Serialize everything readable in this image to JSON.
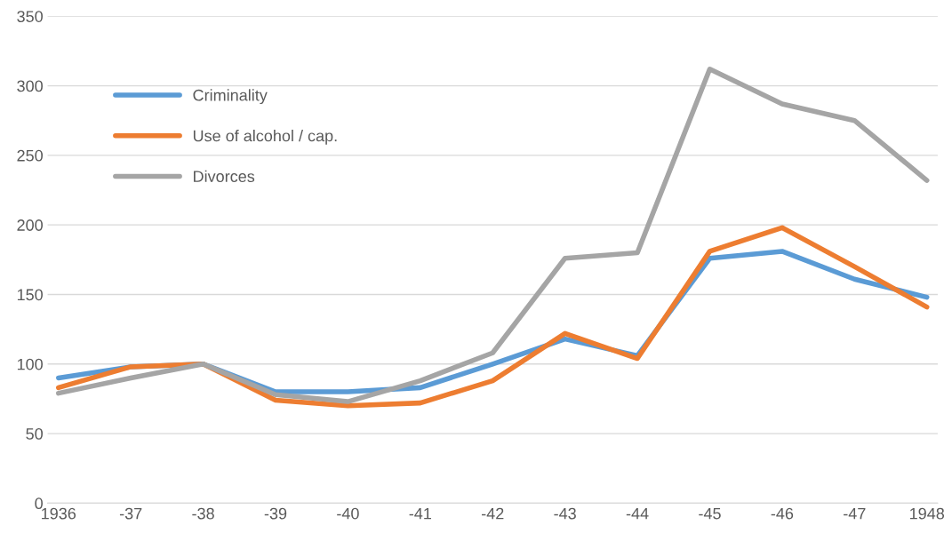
{
  "chart_data": {
    "type": "line",
    "categories": [
      "1936",
      "-37",
      "-38",
      "-39",
      "-40",
      "-41",
      "-42",
      "-43",
      "-44",
      "-45",
      "-46",
      "-47",
      "1948"
    ],
    "series": [
      {
        "name": "Criminality",
        "color": "#5b9bd5",
        "values": [
          90,
          98,
          100,
          80,
          80,
          83,
          100,
          118,
          106,
          176,
          181,
          161,
          148
        ]
      },
      {
        "name": "Use of alcohol / cap.",
        "color": "#ed7d31",
        "values": [
          83,
          98,
          100,
          74,
          70,
          72,
          88,
          122,
          104,
          181,
          198,
          170,
          141
        ]
      },
      {
        "name": "Divorces",
        "color": "#a5a5a5",
        "values": [
          79,
          90,
          100,
          78,
          73,
          88,
          108,
          176,
          180,
          312,
          287,
          275,
          232
        ]
      }
    ],
    "ylim": [
      0,
      350
    ],
    "yticks": [
      0,
      50,
      100,
      150,
      200,
      250,
      300,
      350
    ],
    "grid": "y",
    "legend": "top left",
    "marker": "none",
    "line_style": "solid"
  }
}
